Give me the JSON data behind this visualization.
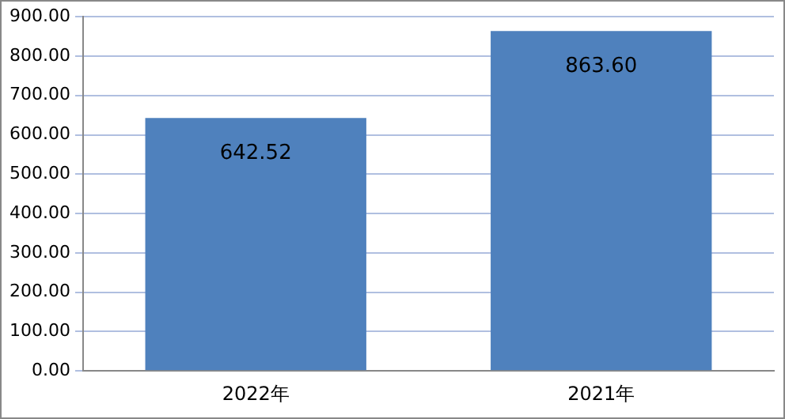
{
  "chart_data": {
    "type": "bar",
    "categories": [
      "2022年",
      "2021年"
    ],
    "values": [
      642.52,
      863.6
    ],
    "value_labels": [
      "642.52",
      "863.60"
    ],
    "color": "#4f81bd",
    "ylim": [
      0,
      900
    ],
    "yticks": [
      {
        "value": 0,
        "label": "0.00"
      },
      {
        "value": 100,
        "label": "100.00"
      },
      {
        "value": 200,
        "label": "200.00"
      },
      {
        "value": 300,
        "label": "300.00"
      },
      {
        "value": 400,
        "label": "400.00"
      },
      {
        "value": 500,
        "label": "500.00"
      },
      {
        "value": 600,
        "label": "600.00"
      },
      {
        "value": 700,
        "label": "700.00"
      },
      {
        "value": 800,
        "label": "800.00"
      },
      {
        "value": 900,
        "label": "900.00"
      }
    ],
    "grid": "y",
    "legend": false
  }
}
